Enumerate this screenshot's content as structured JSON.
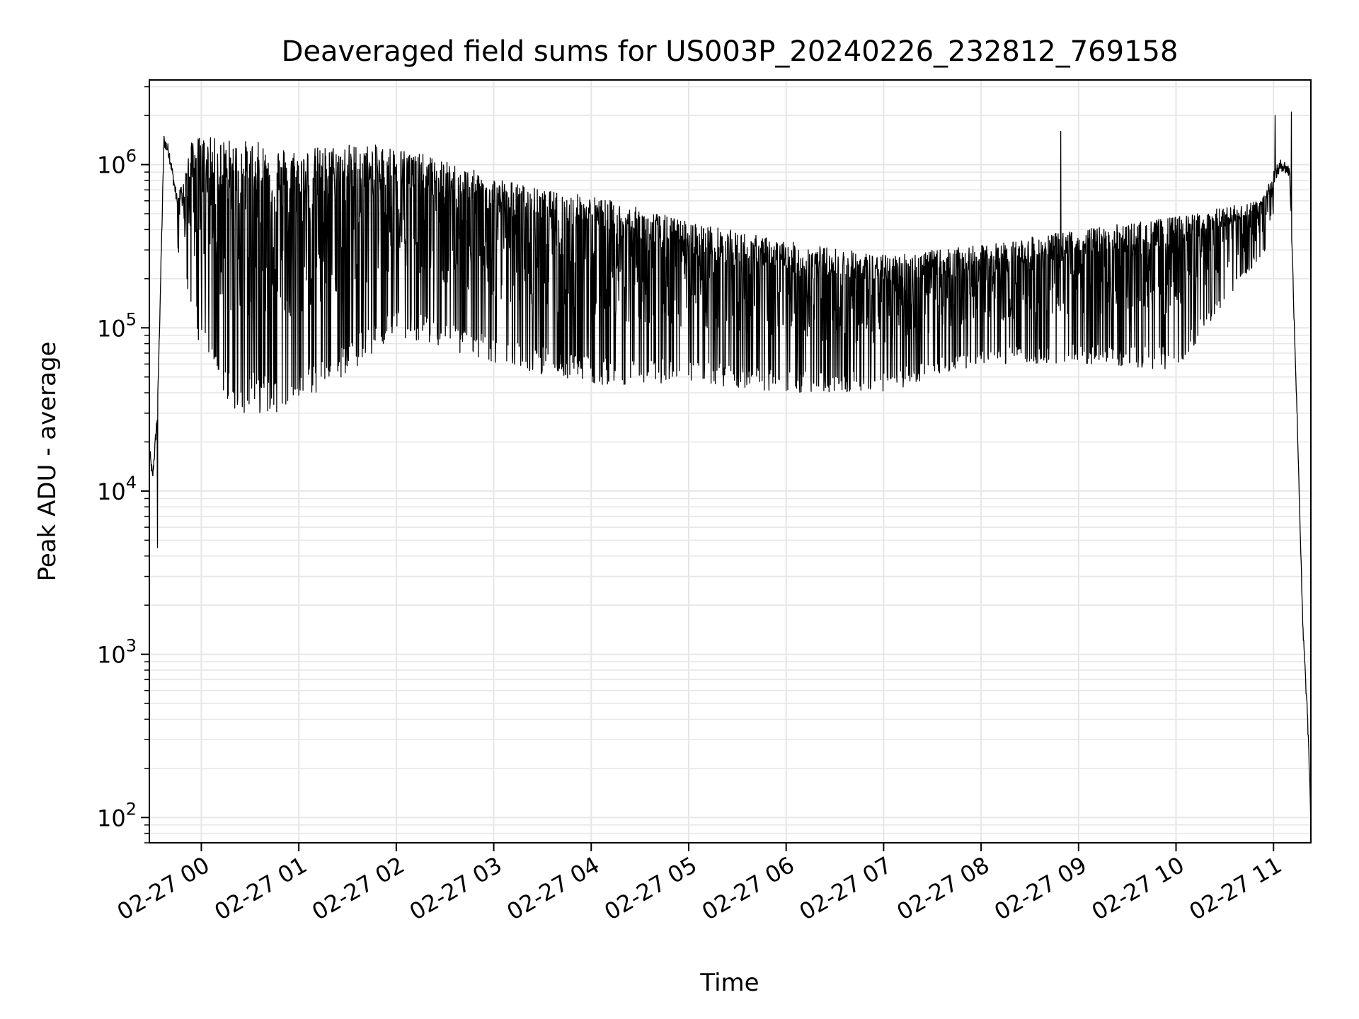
{
  "chart_data": {
    "type": "line",
    "title": "Deaveraged field sums for US003P_20240226_232812_769158",
    "xlabel": "Time",
    "ylabel": "Peak ADU - average",
    "yscale": "log",
    "ylim": [
      70,
      3300000
    ],
    "xlim": [
      "2024-02-26 23:28",
      "2024-02-27 11:23"
    ],
    "grid": true,
    "line_color": "#000000",
    "grid_color": "#e6e6e6",
    "x_ticks": [
      "02-27 00",
      "02-27 01",
      "02-27 02",
      "02-27 03",
      "02-27 04",
      "02-27 05",
      "02-27 06",
      "02-27 07",
      "02-27 08",
      "02-27 09",
      "02-27 10",
      "02-27 11"
    ],
    "y_ticks": [
      {
        "value": 100,
        "base": "10",
        "exp": "2"
      },
      {
        "value": 1000,
        "base": "10",
        "exp": "3"
      },
      {
        "value": 10000,
        "base": "10",
        "exp": "4"
      },
      {
        "value": 100000,
        "base": "10",
        "exp": "5"
      },
      {
        "value": 1000000,
        "base": "10",
        "exp": "6"
      }
    ],
    "series": [
      {
        "style": "dense oscillating signal, alternating between an upper envelope and a lower envelope",
        "upper_envelope": {
          "x": [
            "2024-02-26 23:28",
            "2024-02-26 23:30",
            "2024-02-26 23:33",
            "2024-02-26 23:37",
            "2024-02-26 23:40",
            "2024-02-26 23:45",
            "2024-02-26 23:55",
            "2024-02-27 00:30",
            "2024-02-27 01:00",
            "2024-02-27 01:30",
            "2024-02-27 02:00",
            "2024-02-27 02:30",
            "2024-02-27 03:00",
            "2024-02-27 03:30",
            "2024-02-27 04:00",
            "2024-02-27 05:00",
            "2024-02-27 06:00",
            "2024-02-27 07:00",
            "2024-02-27 08:00",
            "2024-02-27 09:00",
            "2024-02-27 10:00",
            "2024-02-27 10:50",
            "2024-02-27 11:05",
            "2024-02-27 11:10",
            "2024-02-27 11:15",
            "2024-02-27 11:18",
            "2024-02-27 11:21",
            "2024-02-27 11:23"
          ],
          "y": [
            18000,
            12000,
            30000,
            1400000,
            1200000,
            600000,
            1500000,
            1400000,
            1250000,
            1350000,
            1300000,
            1050000,
            850000,
            700000,
            650000,
            450000,
            340000,
            280000,
            320000,
            400000,
            480000,
            600000,
            1000000,
            900000,
            20000,
            1500,
            400,
            100
          ]
        },
        "lower_envelope": {
          "x": [
            "2024-02-26 23:45",
            "2024-02-27 00:00",
            "2024-02-27 00:20",
            "2024-02-27 00:45",
            "2024-02-27 01:15",
            "2024-02-27 02:00",
            "2024-02-27 03:00",
            "2024-02-27 04:00",
            "2024-02-27 05:00",
            "2024-02-27 06:00",
            "2024-02-27 07:00",
            "2024-02-27 08:00",
            "2024-02-27 09:00",
            "2024-02-27 10:00",
            "2024-02-27 11:00"
          ],
          "y": [
            300000,
            70000,
            30000,
            30000,
            40000,
            90000,
            60000,
            45000,
            45000,
            40000,
            40000,
            60000,
            60000,
            55000,
            350000
          ]
        },
        "notable_spikes": [
          {
            "x": "2024-02-26 23:33",
            "y": 4500
          },
          {
            "x": "2024-02-27 08:49",
            "y": 1600000
          },
          {
            "x": "2024-02-27 11:01",
            "y": 2000000
          },
          {
            "x": "2024-02-27 11:11",
            "y": 2100000
          }
        ]
      }
    ]
  }
}
